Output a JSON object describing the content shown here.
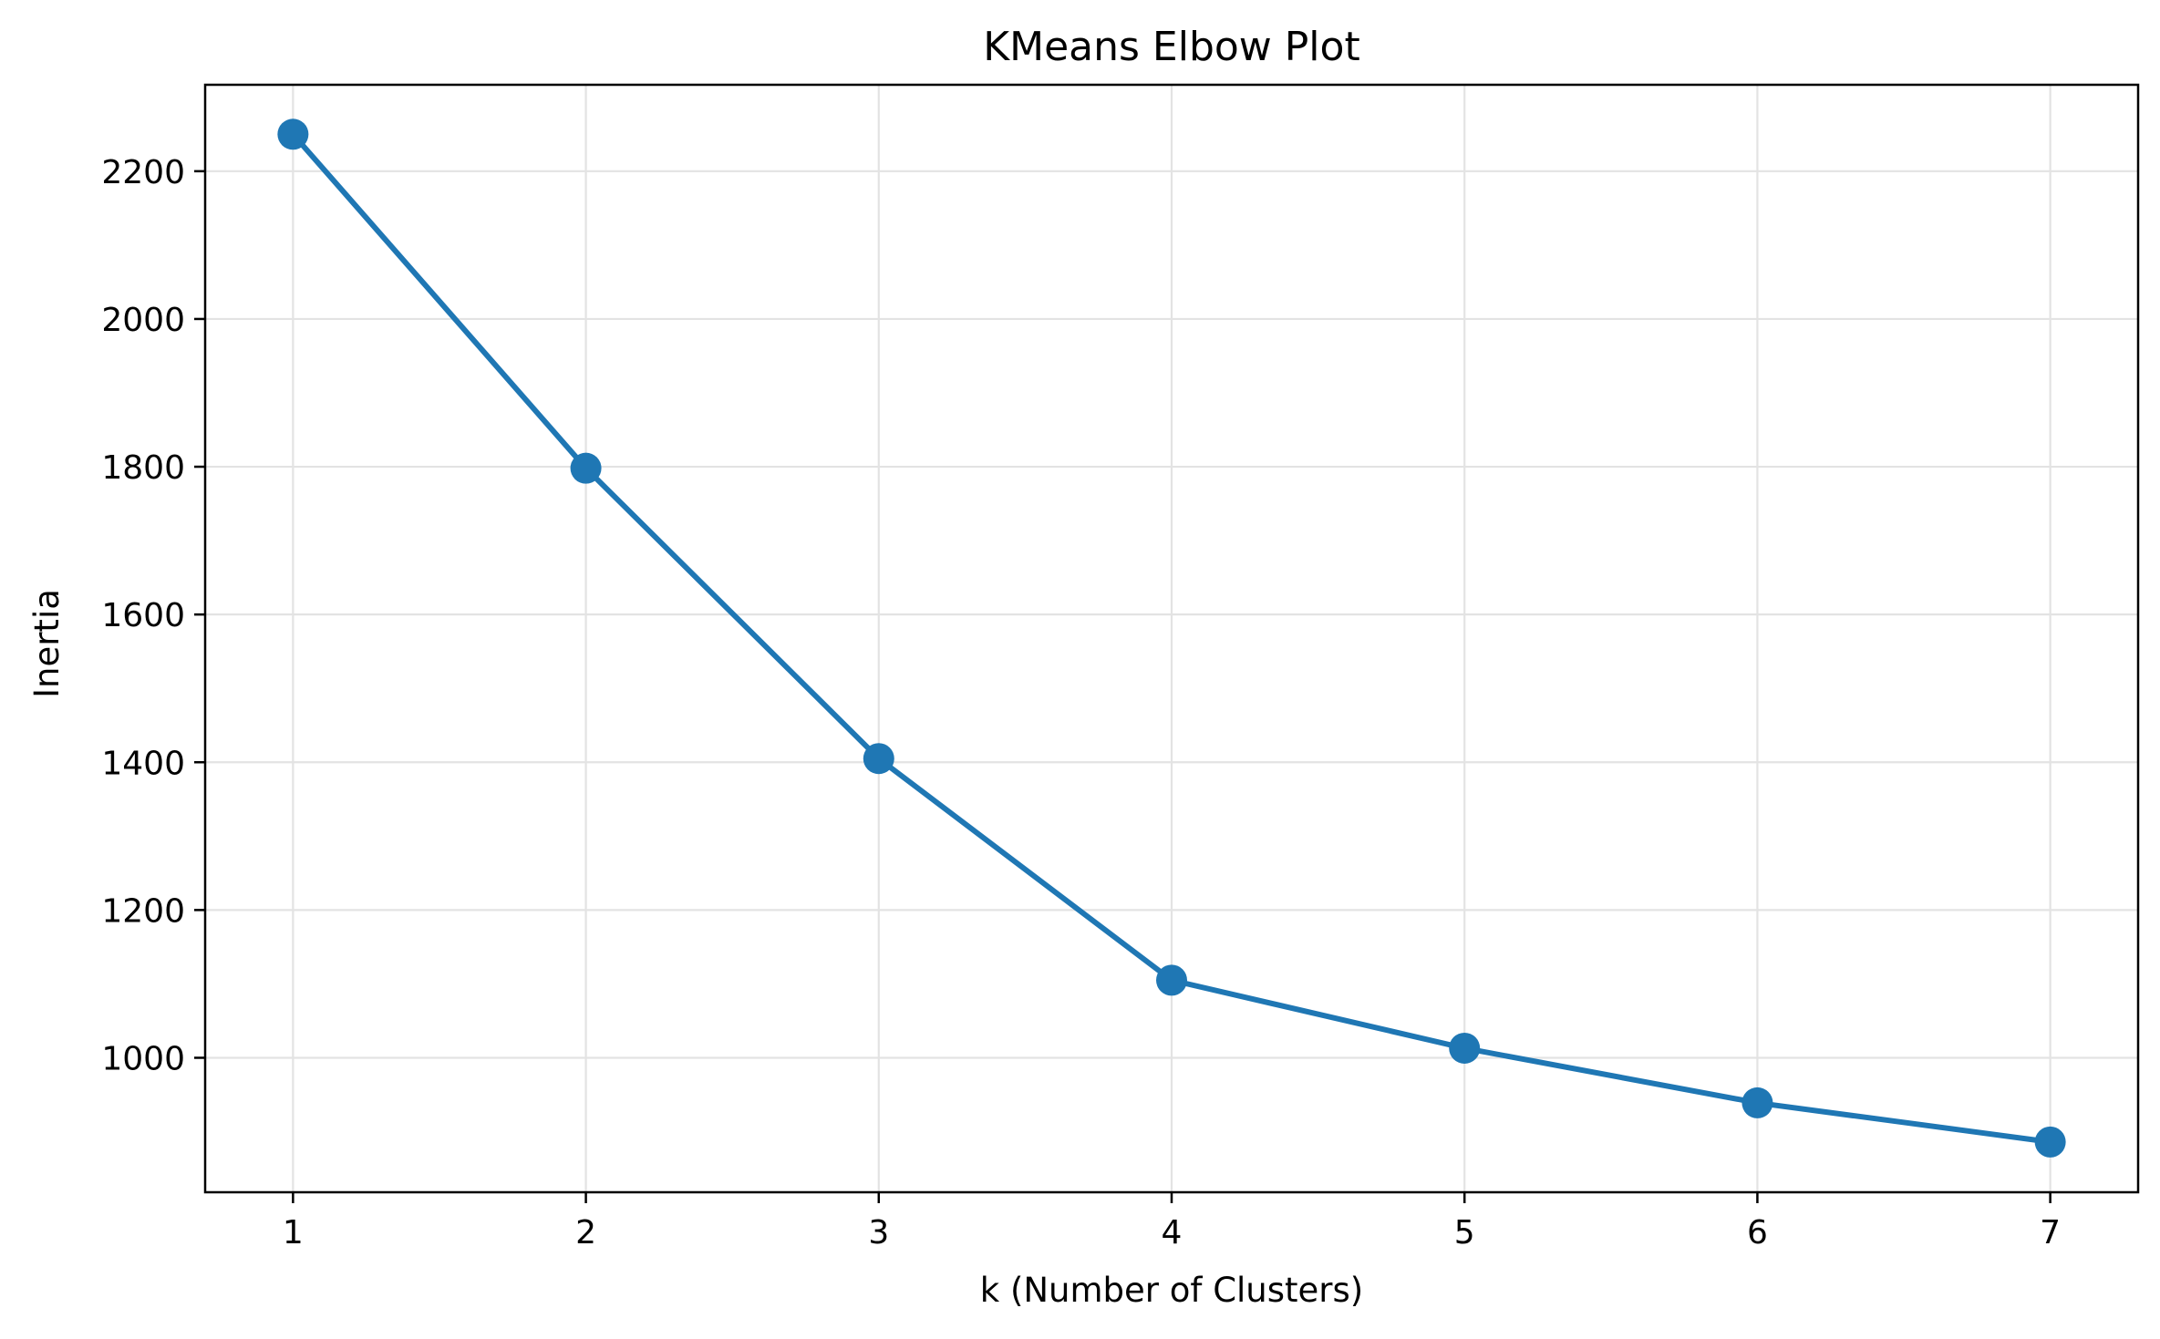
{
  "chart_data": {
    "type": "line",
    "title": "KMeans Elbow Plot",
    "xlabel": "k (Number of Clusters)",
    "ylabel": "Inertia",
    "x": [
      1,
      2,
      3,
      4,
      5,
      6,
      7
    ],
    "series": [
      {
        "values": [
          2250,
          1798,
          1405,
          1105,
          1013,
          939,
          886
        ],
        "color": "#1f77b4",
        "marker": "circle"
      }
    ],
    "xlim": [
      0.7,
      7.3
    ],
    "ylim": [
      818,
      2317
    ],
    "xticks": [
      1,
      2,
      3,
      4,
      5,
      6,
      7
    ],
    "yticks": [
      1000,
      1200,
      1400,
      1600,
      1800,
      2000,
      2200
    ],
    "grid": true,
    "legend": "none"
  }
}
